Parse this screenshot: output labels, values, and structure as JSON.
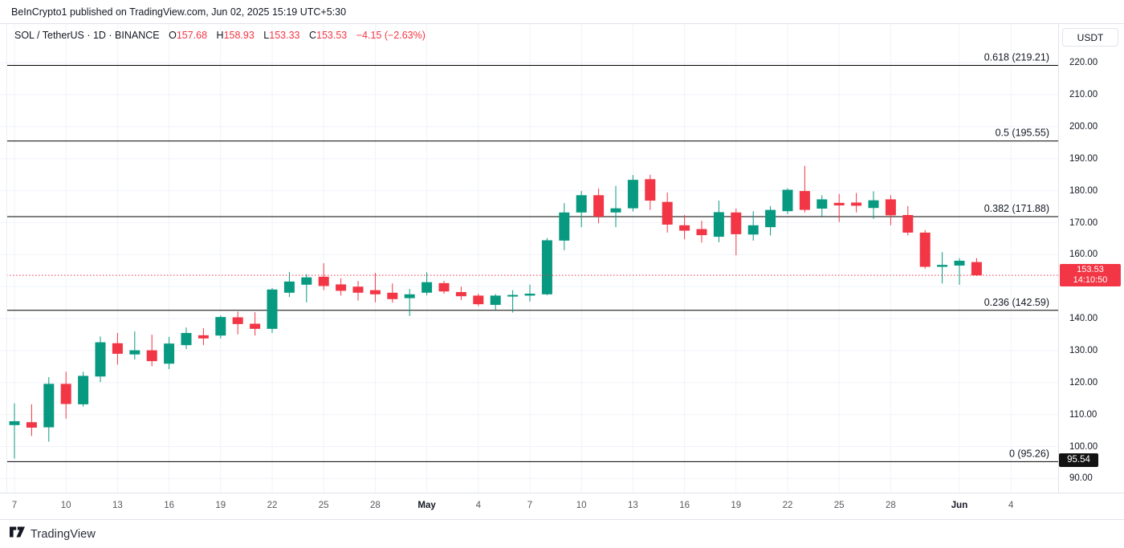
{
  "attribution": "BeInCrypto1 published on TradingView.com, Jun 02, 2025 15:19 UTC+5:30",
  "legend": {
    "title": "SOL / TetherUS · 1D · BINANCE",
    "o_label": "O",
    "o_value": "157.68",
    "h_label": "H",
    "h_value": "158.93",
    "l_label": "L",
    "l_value": "153.33",
    "c_label": "C",
    "c_value": "153.53",
    "change": "−4.15 (−2.63%)"
  },
  "price_axis": {
    "currency": "USDT",
    "ticks": [
      {
        "value": 220,
        "label": "220.00"
      },
      {
        "value": 210,
        "label": "210.00"
      },
      {
        "value": 200,
        "label": "200.00"
      },
      {
        "value": 190,
        "label": "190.00"
      },
      {
        "value": 180,
        "label": "180.00"
      },
      {
        "value": 170,
        "label": "170.00"
      },
      {
        "value": 160,
        "label": "160.00"
      },
      {
        "value": 150,
        "label": ""
      },
      {
        "value": 140,
        "label": "140.00"
      },
      {
        "value": 130,
        "label": "130.00"
      },
      {
        "value": 120,
        "label": "120.00"
      },
      {
        "value": 110,
        "label": "110.00"
      },
      {
        "value": 100,
        "label": "100.00"
      },
      {
        "value": 90,
        "label": "90.00"
      }
    ],
    "last_badge": {
      "price": "153.53",
      "time": "14:10:50",
      "color": "#f23645"
    },
    "level_badge": {
      "label": "95.54",
      "value": 95.54,
      "color": "#121212"
    }
  },
  "time_axis": {
    "ticks": [
      {
        "i": 0,
        "label": "7",
        "bold": false
      },
      {
        "i": 3,
        "label": "10",
        "bold": false
      },
      {
        "i": 6,
        "label": "13",
        "bold": false
      },
      {
        "i": 9,
        "label": "16",
        "bold": false
      },
      {
        "i": 12,
        "label": "19",
        "bold": false
      },
      {
        "i": 15,
        "label": "22",
        "bold": false
      },
      {
        "i": 18,
        "label": "25",
        "bold": false
      },
      {
        "i": 21,
        "label": "28",
        "bold": false
      },
      {
        "i": 24,
        "label": "May",
        "bold": true
      },
      {
        "i": 27,
        "label": "4",
        "bold": false
      },
      {
        "i": 30,
        "label": "7",
        "bold": false
      },
      {
        "i": 33,
        "label": "10",
        "bold": false
      },
      {
        "i": 36,
        "label": "13",
        "bold": false
      },
      {
        "i": 39,
        "label": "16",
        "bold": false
      },
      {
        "i": 42,
        "label": "19",
        "bold": false
      },
      {
        "i": 45,
        "label": "22",
        "bold": false
      },
      {
        "i": 48,
        "label": "25",
        "bold": false
      },
      {
        "i": 51,
        "label": "28",
        "bold": false
      },
      {
        "i": 55,
        "label": "Jun",
        "bold": true
      },
      {
        "i": 58,
        "label": "4",
        "bold": false
      }
    ]
  },
  "footer": {
    "logo_text": "TradingView"
  },
  "chart_data": {
    "type": "candlestick",
    "symbol": "SOL/USDT",
    "exchange": "BINANCE",
    "timeframe": "1D",
    "ylabel": "USDT",
    "ylim": [
      88,
      224
    ],
    "grid": true,
    "colors": {
      "up": "#089981",
      "down": "#f23645",
      "fib_line": "#000000",
      "fib_text": "#131722",
      "last_line": "#f23645",
      "grid": "#f0f3fa"
    },
    "last_price": {
      "value": 153.53,
      "time": "14:10:50"
    },
    "fib_levels": [
      {
        "ratio": "0.618",
        "price": 219.21,
        "label": "0.618 (219.21)"
      },
      {
        "ratio": "0.5",
        "price": 195.55,
        "label": "0.5 (195.55)"
      },
      {
        "ratio": "0.382",
        "price": 171.88,
        "label": "0.382 (171.88)"
      },
      {
        "ratio": "0.236",
        "price": 142.59,
        "label": "0.236 (142.59)"
      },
      {
        "ratio": "0",
        "price": 95.26,
        "label": "0 (95.26)"
      }
    ],
    "candles": [
      {
        "d": "Apr 7",
        "o": 106.7,
        "h": 113.5,
        "l": 96.2,
        "c": 107.9
      },
      {
        "d": "Apr 8",
        "o": 107.6,
        "h": 113.2,
        "l": 103.3,
        "c": 105.9
      },
      {
        "d": "Apr 9",
        "o": 106.0,
        "h": 121.7,
        "l": 101.5,
        "c": 119.6
      },
      {
        "d": "Apr 10",
        "o": 119.6,
        "h": 123.4,
        "l": 108.7,
        "c": 113.3
      },
      {
        "d": "Apr 11",
        "o": 113.2,
        "h": 123.4,
        "l": 112.5,
        "c": 122.1
      },
      {
        "d": "Apr 12",
        "o": 121.9,
        "h": 134.4,
        "l": 120.1,
        "c": 132.6
      },
      {
        "d": "Apr 13",
        "o": 132.3,
        "h": 135.5,
        "l": 125.6,
        "c": 129.0
      },
      {
        "d": "Apr 14",
        "o": 128.8,
        "h": 136.0,
        "l": 127.2,
        "c": 130.1
      },
      {
        "d": "Apr 15",
        "o": 130.1,
        "h": 135.0,
        "l": 125.1,
        "c": 126.7
      },
      {
        "d": "Apr 16",
        "o": 125.9,
        "h": 134.3,
        "l": 124.2,
        "c": 132.2
      },
      {
        "d": "Apr 17",
        "o": 131.7,
        "h": 137.2,
        "l": 130.5,
        "c": 135.5
      },
      {
        "d": "Apr 18",
        "o": 134.8,
        "h": 137.0,
        "l": 131.7,
        "c": 133.8
      },
      {
        "d": "Apr 19",
        "o": 134.7,
        "h": 141.0,
        "l": 133.8,
        "c": 140.5
      },
      {
        "d": "Apr 20",
        "o": 140.4,
        "h": 142.2,
        "l": 135.1,
        "c": 138.3
      },
      {
        "d": "Apr 21",
        "o": 138.4,
        "h": 142.0,
        "l": 134.7,
        "c": 136.8
      },
      {
        "d": "Apr 22",
        "o": 136.8,
        "h": 149.6,
        "l": 135.5,
        "c": 149.1
      },
      {
        "d": "Apr 23",
        "o": 148.1,
        "h": 154.6,
        "l": 146.8,
        "c": 151.6
      },
      {
        "d": "Apr 24",
        "o": 150.6,
        "h": 153.9,
        "l": 145.1,
        "c": 152.9
      },
      {
        "d": "Apr 25",
        "o": 153.1,
        "h": 157.3,
        "l": 148.9,
        "c": 150.2
      },
      {
        "d": "Apr 26",
        "o": 150.7,
        "h": 152.6,
        "l": 147.2,
        "c": 148.7
      },
      {
        "d": "Apr 27",
        "o": 150.0,
        "h": 151.8,
        "l": 145.6,
        "c": 148.1
      },
      {
        "d": "Apr 28",
        "o": 148.9,
        "h": 154.3,
        "l": 145.1,
        "c": 147.6
      },
      {
        "d": "Apr 29",
        "o": 148.1,
        "h": 151.0,
        "l": 145.0,
        "c": 146.1
      },
      {
        "d": "Apr 30",
        "o": 146.4,
        "h": 149.3,
        "l": 140.8,
        "c": 147.6
      },
      {
        "d": "May 1",
        "o": 148.1,
        "h": 154.5,
        "l": 147.3,
        "c": 151.4
      },
      {
        "d": "May 2",
        "o": 151.1,
        "h": 151.8,
        "l": 147.8,
        "c": 148.5
      },
      {
        "d": "May 3",
        "o": 148.3,
        "h": 150.0,
        "l": 145.8,
        "c": 147.0
      },
      {
        "d": "May 4",
        "o": 147.2,
        "h": 147.8,
        "l": 143.9,
        "c": 144.5
      },
      {
        "d": "May 5",
        "o": 144.3,
        "h": 147.7,
        "l": 142.8,
        "c": 147.2
      },
      {
        "d": "May 6",
        "o": 146.9,
        "h": 148.9,
        "l": 141.9,
        "c": 147.4
      },
      {
        "d": "May 7",
        "o": 147.2,
        "h": 150.6,
        "l": 145.3,
        "c": 147.8
      },
      {
        "d": "May 8",
        "o": 147.6,
        "h": 165.2,
        "l": 147.3,
        "c": 164.5
      },
      {
        "d": "May 9",
        "o": 164.4,
        "h": 176.1,
        "l": 161.4,
        "c": 173.2
      },
      {
        "d": "May 10",
        "o": 173.2,
        "h": 179.9,
        "l": 168.6,
        "c": 178.6
      },
      {
        "d": "May 11",
        "o": 178.6,
        "h": 180.7,
        "l": 169.8,
        "c": 171.9
      },
      {
        "d": "May 12",
        "o": 173.2,
        "h": 181.5,
        "l": 168.6,
        "c": 174.5
      },
      {
        "d": "May 13",
        "o": 174.5,
        "h": 184.9,
        "l": 173.5,
        "c": 183.4
      },
      {
        "d": "May 14",
        "o": 183.6,
        "h": 185.0,
        "l": 174.0,
        "c": 176.9
      },
      {
        "d": "May 15",
        "o": 176.5,
        "h": 179.4,
        "l": 166.9,
        "c": 169.4
      },
      {
        "d": "May 16",
        "o": 169.2,
        "h": 172.4,
        "l": 164.8,
        "c": 167.5
      },
      {
        "d": "May 17",
        "o": 168.0,
        "h": 170.6,
        "l": 163.8,
        "c": 166.1
      },
      {
        "d": "May 18",
        "o": 165.6,
        "h": 176.9,
        "l": 163.9,
        "c": 173.3
      },
      {
        "d": "May 19",
        "o": 173.2,
        "h": 174.4,
        "l": 159.8,
        "c": 166.4
      },
      {
        "d": "May 20",
        "o": 166.3,
        "h": 173.6,
        "l": 164.4,
        "c": 169.2
      },
      {
        "d": "May 21",
        "o": 168.6,
        "h": 175.2,
        "l": 166.0,
        "c": 174.0
      },
      {
        "d": "May 22",
        "o": 173.6,
        "h": 180.8,
        "l": 172.7,
        "c": 180.3
      },
      {
        "d": "May 23",
        "o": 179.9,
        "h": 187.8,
        "l": 173.2,
        "c": 174.0
      },
      {
        "d": "May 24",
        "o": 174.4,
        "h": 178.6,
        "l": 172.0,
        "c": 177.3
      },
      {
        "d": "May 25",
        "o": 176.2,
        "h": 179.0,
        "l": 170.2,
        "c": 175.4
      },
      {
        "d": "May 26",
        "o": 176.3,
        "h": 179.3,
        "l": 173.2,
        "c": 175.3
      },
      {
        "d": "May 27",
        "o": 174.6,
        "h": 179.8,
        "l": 171.2,
        "c": 177.0
      },
      {
        "d": "May 28",
        "o": 177.3,
        "h": 178.6,
        "l": 169.2,
        "c": 172.3
      },
      {
        "d": "May 29",
        "o": 172.4,
        "h": 175.2,
        "l": 166.0,
        "c": 166.9
      },
      {
        "d": "May 30",
        "o": 166.9,
        "h": 167.7,
        "l": 155.6,
        "c": 156.2
      },
      {
        "d": "May 31",
        "o": 156.2,
        "h": 160.8,
        "l": 151.0,
        "c": 156.8
      },
      {
        "d": "Jun 1",
        "o": 156.6,
        "h": 158.9,
        "l": 150.6,
        "c": 158.1
      },
      {
        "d": "Jun 2",
        "o": 157.68,
        "h": 158.93,
        "l": 153.33,
        "c": 153.53
      }
    ]
  }
}
